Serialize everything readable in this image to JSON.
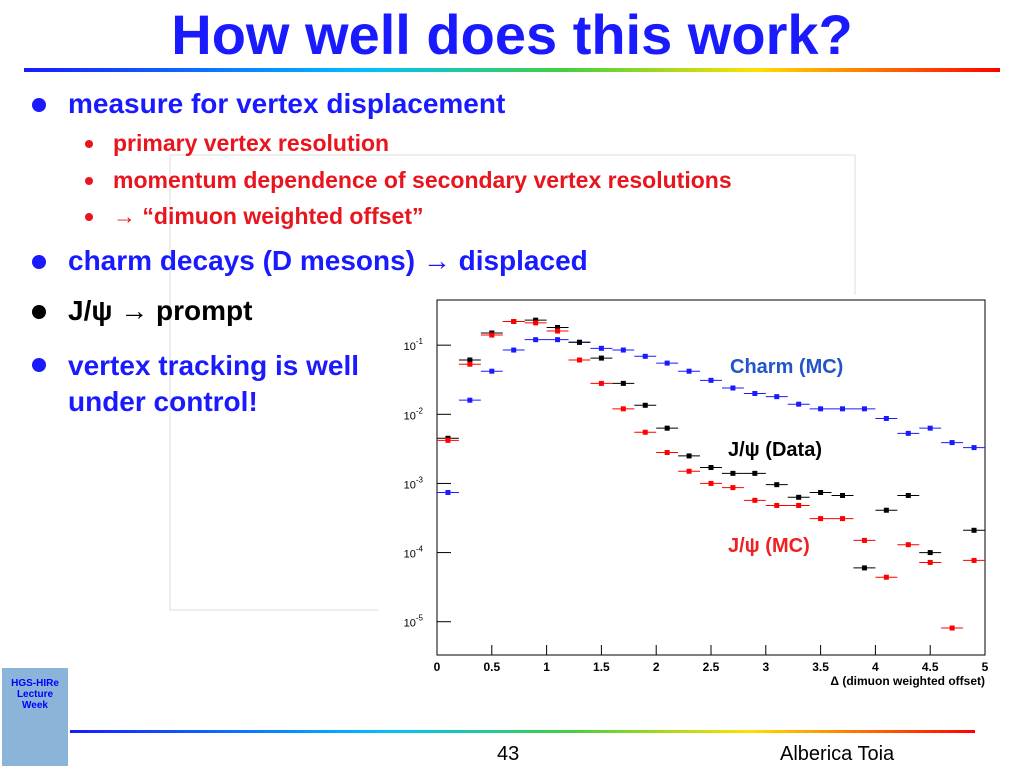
{
  "slide": {
    "title": "How well does this work?",
    "bullets": [
      {
        "text": "measure for vertex displacement",
        "sub": [
          "primary vertex resolution",
          "momentum dependence of secondary vertex resolutions",
          "→ “dimuon weighted offset”"
        ]
      },
      {
        "text": "charm decays (D mesons) → displaced"
      },
      {
        "text": "J/ψ → prompt"
      },
      {
        "text": "vertex tracking is well under control!"
      }
    ],
    "footer": {
      "page": "43",
      "author": "Alberica Toia",
      "logo": "HGS-HIRe Lecture Week"
    }
  },
  "chart_data": {
    "type": "scatter",
    "xlabel": "Δ (dimuon weighted offset)",
    "log_y": true,
    "x": [
      0.1,
      0.3,
      0.5,
      0.7,
      0.9,
      1.1,
      1.3,
      1.5,
      1.7,
      1.9,
      2.1,
      2.3,
      2.5,
      2.7,
      2.9,
      3.1,
      3.3,
      3.5,
      3.7,
      3.9,
      4.1,
      4.3,
      4.5,
      4.7,
      4.9
    ],
    "series": [
      {
        "name": "Charm (MC)",
        "color": "#1a1aff",
        "values": [
          0.00074,
          0.016,
          0.042,
          0.085,
          0.12,
          0.12,
          0.11,
          0.09,
          0.085,
          0.069,
          0.055,
          0.042,
          0.031,
          0.024,
          0.02,
          0.018,
          0.014,
          0.012,
          0.012,
          0.012,
          0.0087,
          0.0053,
          0.0063,
          0.0039,
          0.0033
        ]
      },
      {
        "name": "J/ψ (Data)",
        "color": "#000000",
        "values": [
          0.0045,
          0.061,
          0.15,
          0.22,
          0.23,
          0.18,
          0.11,
          0.065,
          0.028,
          0.0135,
          0.0063,
          0.0025,
          0.0017,
          0.0014,
          0.0014,
          0.00096,
          0.00063,
          0.00074,
          0.00067,
          6e-05,
          0.00041,
          0.00067,
          0.0001,
          null,
          0.00021
        ]
      },
      {
        "name": "J/ψ (MC)",
        "color": "#ff0000",
        "values": [
          0.0042,
          0.053,
          0.14,
          0.22,
          0.21,
          0.16,
          0.061,
          0.028,
          0.012,
          0.0055,
          0.0028,
          0.0015,
          0.001,
          0.00087,
          0.00057,
          0.00048,
          0.00048,
          0.00031,
          0.00031,
          0.00015,
          4.4e-05,
          0.00013,
          7.2e-05,
          8.1e-06,
          7.7e-05
        ]
      }
    ],
    "xlim": [
      0,
      5
    ],
    "xticks": [
      0,
      0.5,
      1,
      1.5,
      2,
      2.5,
      3,
      3.5,
      4,
      4.5,
      5
    ],
    "ylim": [
      3.3e-06,
      0.45
    ],
    "yticks": [
      {
        "value": 1e-05,
        "label": "10",
        "exponent": "-5"
      },
      {
        "value": 0.0001,
        "label": "10",
        "exponent": "-4"
      },
      {
        "value": 0.001,
        "label": "10",
        "exponent": "-3"
      },
      {
        "value": 0.01,
        "label": "10",
        "exponent": "-2"
      },
      {
        "value": 0.1,
        "label": "10",
        "exponent": "-1"
      }
    ]
  }
}
